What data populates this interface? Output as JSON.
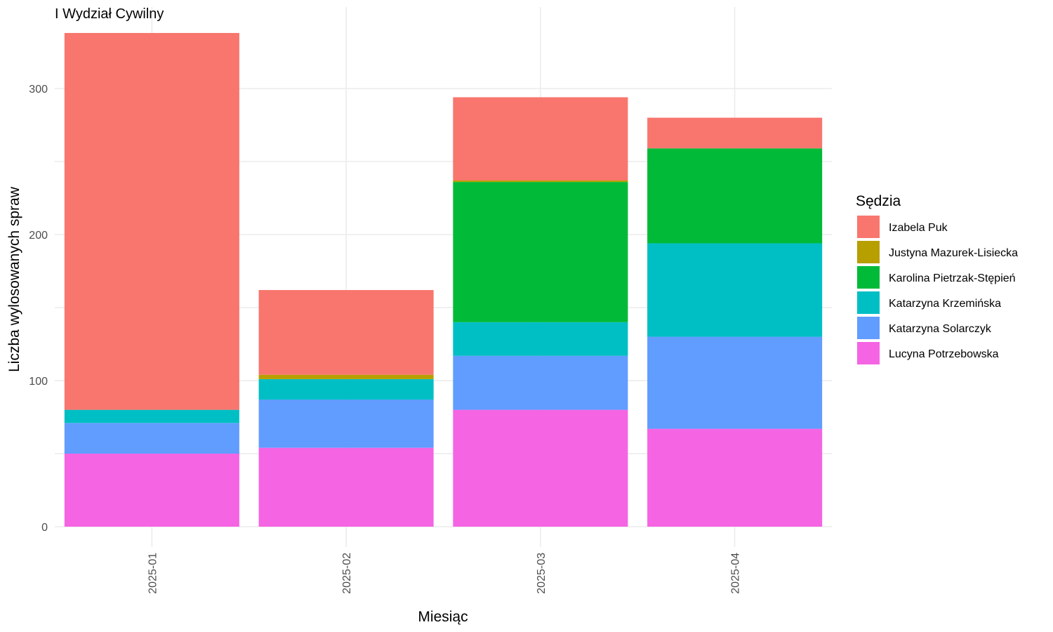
{
  "chart_data": {
    "type": "bar",
    "stacked": true,
    "title": "I Wydział Cywilny",
    "xlabel": "Miesiąc",
    "ylabel": "Liczba wylosowanych spraw",
    "categories": [
      "2025-01",
      "2025-02",
      "2025-03",
      "2025-04"
    ],
    "ylim": [
      0,
      340
    ],
    "yticks": [
      0,
      100,
      200,
      300
    ],
    "grid": true,
    "legend": {
      "title": "Sędzia",
      "position": "right"
    },
    "series": [
      {
        "name": "Lucyna Potrzebowska",
        "color": "#F564E3",
        "values": [
          50,
          54,
          80,
          67
        ]
      },
      {
        "name": "Katarzyna Solarczyk",
        "color": "#619CFF",
        "values": [
          21,
          33,
          37,
          63
        ]
      },
      {
        "name": "Katarzyna Krzemińska",
        "color": "#00BFC4",
        "values": [
          9,
          14,
          23,
          64
        ]
      },
      {
        "name": "Karolina Pietrzak-Stępień",
        "color": "#00BA38",
        "values": [
          0,
          0,
          96,
          65
        ]
      },
      {
        "name": "Justyna Mazurek-Lisiecka",
        "color": "#B79F00",
        "values": [
          0,
          3,
          1,
          0
        ]
      },
      {
        "name": "Izabela Puk",
        "color": "#F8766D",
        "values": [
          258,
          58,
          57,
          21
        ]
      }
    ],
    "legend_order": [
      "Izabela Puk",
      "Justyna Mazurek-Lisiecka",
      "Karolina Pietrzak-Stępień",
      "Katarzyna Krzemińska",
      "Katarzyna Solarczyk",
      "Lucyna Potrzebowska"
    ]
  }
}
